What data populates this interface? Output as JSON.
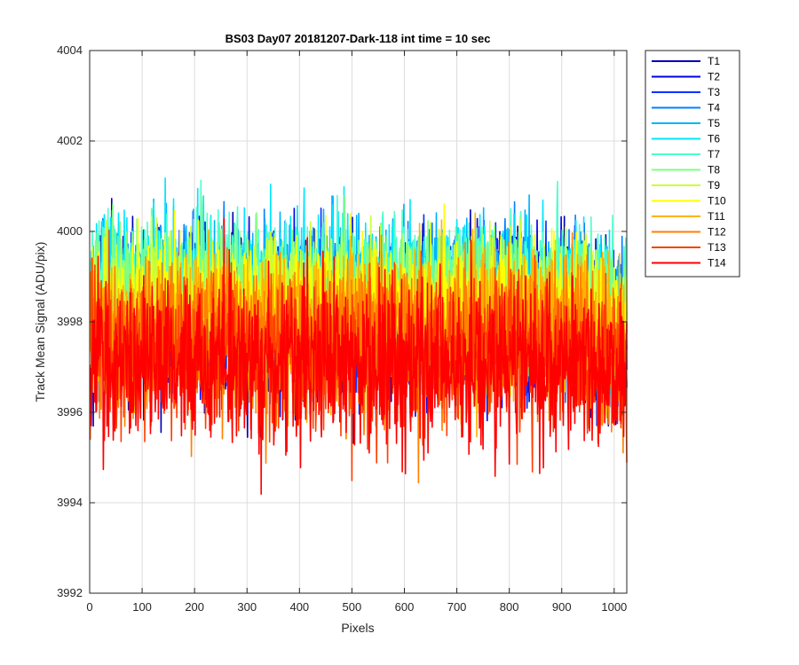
{
  "chart_data": {
    "type": "line",
    "title": "BS03 Day07 20181207-Dark-118 int time = 10 sec",
    "xlabel": "Pixels",
    "ylabel": "Track Mean Signal (ADU/pix)",
    "xlim": [
      0,
      1024
    ],
    "ylim": [
      3992,
      4004
    ],
    "xticks": [
      0,
      100,
      200,
      300,
      400,
      500,
      600,
      700,
      800,
      900,
      1000
    ],
    "yticks": [
      3992,
      3994,
      3996,
      3998,
      4000,
      4002,
      4004
    ],
    "grid": true,
    "legend_position": "outside-top-right",
    "n_points": 1024,
    "series": [
      {
        "name": "T1",
        "color": "#0000B3",
        "mean": 3998.1,
        "noise": 1.15
      },
      {
        "name": "T2",
        "color": "#0000E6",
        "mean": 3998.1,
        "noise": 1.15
      },
      {
        "name": "T3",
        "color": "#0033FF",
        "mean": 3998.2,
        "noise": 1.1
      },
      {
        "name": "T4",
        "color": "#0080FF",
        "mean": 3998.4,
        "noise": 1.1
      },
      {
        "name": "T5",
        "color": "#00B3FF",
        "mean": 3998.6,
        "noise": 1.05
      },
      {
        "name": "T6",
        "color": "#00E6FF",
        "mean": 3998.8,
        "noise": 1.0
      },
      {
        "name": "T7",
        "color": "#4DFFCC",
        "mean": 3998.8,
        "noise": 1.0
      },
      {
        "name": "T8",
        "color": "#80FF80",
        "mean": 3998.6,
        "noise": 1.0
      },
      {
        "name": "T9",
        "color": "#CCFF33",
        "mean": 3998.4,
        "noise": 1.0
      },
      {
        "name": "T10",
        "color": "#FFFF00",
        "mean": 3998.2,
        "noise": 1.05
      },
      {
        "name": "T11",
        "color": "#FFB300",
        "mean": 3997.9,
        "noise": 1.1
      },
      {
        "name": "T12",
        "color": "#FF8000",
        "mean": 3997.6,
        "noise": 1.15
      },
      {
        "name": "T13",
        "color": "#FF4000",
        "mean": 3997.3,
        "noise": 1.15
      },
      {
        "name": "T14",
        "color": "#FF0000",
        "mean": 3997.1,
        "noise": 1.2
      }
    ]
  }
}
